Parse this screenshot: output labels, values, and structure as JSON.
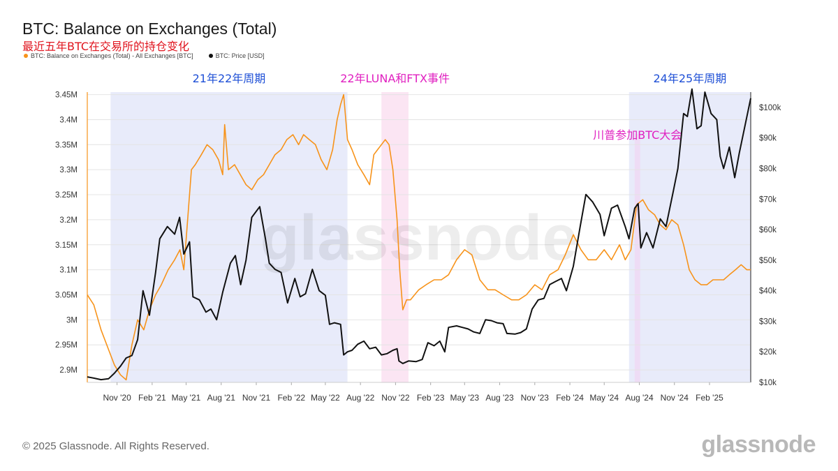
{
  "header": {
    "title": "BTC: Balance on Exchanges (Total)",
    "subtitle": "最近五年BTC在交易所的持仓变化",
    "legend": [
      {
        "label": "BTC: Balance on Exchanges (Total) - All Exchanges [BTC]",
        "color": "#f7931a"
      },
      {
        "label": "BTC: Price [USD]",
        "color": "#111111"
      }
    ]
  },
  "footer": {
    "copyright": "© 2025 Glassnode. All Rights Reserved.",
    "brand": "glassnode"
  },
  "watermark": "glassnode",
  "chart_data": {
    "type": "line",
    "x_ticks": [
      "Nov '20",
      "Feb '21",
      "May '21",
      "Aug '21",
      "Nov '21",
      "Feb '22",
      "May '22",
      "Aug '22",
      "Nov '22",
      "Feb '23",
      "May '23",
      "Aug '23",
      "Nov '23",
      "Feb '24",
      "May '24",
      "Aug '24",
      "Nov '24",
      "Feb '25"
    ],
    "x_range": [
      "2020-08-15",
      "2025-05-20"
    ],
    "y_left": {
      "ticks": [
        "2.9M",
        "2.95M",
        "3M",
        "3.05M",
        "3.1M",
        "3.15M",
        "3.2M",
        "3.25M",
        "3.3M",
        "3.35M",
        "3.4M",
        "3.45M"
      ],
      "ylim": [
        2.875,
        3.455
      ],
      "unit": "M BTC"
    },
    "y_right": {
      "ticks": [
        "$10k",
        "$20k",
        "$30k",
        "$40k",
        "$50k",
        "$60k",
        "$70k",
        "$80k",
        "$90k",
        "$100k"
      ],
      "ylim": [
        10,
        105
      ],
      "unit": "k USD"
    },
    "grid": true,
    "shaded_regions": [
      {
        "label": "21年22年周期",
        "start": "2020-10-15",
        "end": "2022-06-28",
        "color": "#e8ebfa",
        "label_color": "#1e4fd6"
      },
      {
        "label": "22年LUNA和FTX事件",
        "start": "2022-09-25",
        "end": "2022-12-05",
        "color": "#fbe5f3",
        "label_color": "#e020c0"
      },
      {
        "label": "24年25年周期",
        "start": "2024-07-05",
        "end": "2025-05-20",
        "color": "#e8ebfa",
        "label_color": "#1e4fd6"
      }
    ],
    "markers": [
      {
        "label": "川普参加BTC大会",
        "date": "2024-07-27",
        "color": "#e020c0"
      }
    ],
    "series": [
      {
        "name": "BTC: Balance on Exchanges (Total) - All Exchanges [BTC]",
        "axis": "left",
        "color": "#f7931a",
        "x": [
          "2020-08-15",
          "2020-09-01",
          "2020-09-20",
          "2020-10-10",
          "2020-10-25",
          "2020-11-10",
          "2020-11-25",
          "2020-12-10",
          "2020-12-25",
          "2021-01-10",
          "2021-01-25",
          "2021-02-10",
          "2021-02-25",
          "2021-03-15",
          "2021-04-01",
          "2021-04-15",
          "2021-04-25",
          "2021-05-05",
          "2021-05-15",
          "2021-05-25",
          "2021-06-10",
          "2021-06-25",
          "2021-07-10",
          "2021-07-25",
          "2021-08-05",
          "2021-08-10",
          "2021-08-20",
          "2021-09-05",
          "2021-09-20",
          "2021-10-05",
          "2021-10-20",
          "2021-11-05",
          "2021-11-20",
          "2021-12-05",
          "2021-12-20",
          "2022-01-05",
          "2022-01-20",
          "2022-02-05",
          "2022-02-20",
          "2022-03-05",
          "2022-03-20",
          "2022-04-05",
          "2022-04-20",
          "2022-05-05",
          "2022-05-20",
          "2022-06-01",
          "2022-06-10",
          "2022-06-18",
          "2022-06-28",
          "2022-07-10",
          "2022-07-25",
          "2022-08-10",
          "2022-08-25",
          "2022-09-05",
          "2022-09-15",
          "2022-09-25",
          "2022-10-05",
          "2022-10-15",
          "2022-10-25",
          "2022-11-05",
          "2022-11-12",
          "2022-11-20",
          "2022-11-30",
          "2022-12-10",
          "2023-01-01",
          "2023-01-20",
          "2023-02-10",
          "2023-03-01",
          "2023-03-20",
          "2023-04-10",
          "2023-05-01",
          "2023-05-20",
          "2023-06-10",
          "2023-07-01",
          "2023-07-20",
          "2023-08-10",
          "2023-09-01",
          "2023-09-20",
          "2023-10-10",
          "2023-11-01",
          "2023-11-20",
          "2023-12-10",
          "2024-01-01",
          "2024-01-20",
          "2024-02-10",
          "2024-03-01",
          "2024-03-20",
          "2024-04-10",
          "2024-05-01",
          "2024-05-20",
          "2024-06-10",
          "2024-06-25",
          "2024-07-10",
          "2024-07-25",
          "2024-08-10",
          "2024-08-25",
          "2024-09-10",
          "2024-09-25",
          "2024-10-10",
          "2024-10-25",
          "2024-11-10",
          "2024-11-25",
          "2024-12-10",
          "2024-12-25",
          "2025-01-10",
          "2025-01-25",
          "2025-02-10",
          "2025-02-25",
          "2025-03-10",
          "2025-03-25",
          "2025-04-10",
          "2025-04-25",
          "2025-05-10",
          "2025-05-20"
        ],
        "values": [
          3.05,
          3.03,
          2.98,
          2.94,
          2.91,
          2.89,
          2.88,
          2.95,
          3.0,
          2.98,
          3.02,
          3.05,
          3.07,
          3.1,
          3.12,
          3.14,
          3.1,
          3.2,
          3.3,
          3.31,
          3.33,
          3.35,
          3.34,
          3.32,
          3.29,
          3.39,
          3.3,
          3.31,
          3.29,
          3.27,
          3.26,
          3.28,
          3.29,
          3.31,
          3.33,
          3.34,
          3.36,
          3.37,
          3.35,
          3.37,
          3.36,
          3.35,
          3.32,
          3.3,
          3.34,
          3.4,
          3.43,
          3.45,
          3.36,
          3.34,
          3.31,
          3.29,
          3.27,
          3.33,
          3.34,
          3.35,
          3.36,
          3.35,
          3.3,
          3.2,
          3.1,
          3.02,
          3.04,
          3.04,
          3.06,
          3.07,
          3.08,
          3.08,
          3.09,
          3.12,
          3.14,
          3.13,
          3.08,
          3.06,
          3.06,
          3.05,
          3.04,
          3.04,
          3.05,
          3.07,
          3.06,
          3.09,
          3.1,
          3.13,
          3.17,
          3.14,
          3.12,
          3.12,
          3.14,
          3.12,
          3.15,
          3.12,
          3.14,
          3.23,
          3.24,
          3.22,
          3.21,
          3.19,
          3.18,
          3.2,
          3.19,
          3.15,
          3.1,
          3.08,
          3.07,
          3.07,
          3.08,
          3.08,
          3.08,
          3.09,
          3.1,
          3.11,
          3.1,
          3.1
        ]
      },
      {
        "name": "BTC: Price [USD]",
        "axis": "right",
        "color": "#111111",
        "x": [
          "2020-08-15",
          "2020-09-01",
          "2020-09-20",
          "2020-10-10",
          "2020-10-25",
          "2020-11-10",
          "2020-11-25",
          "2020-12-10",
          "2020-12-25",
          "2021-01-08",
          "2021-01-25",
          "2021-02-10",
          "2021-02-21",
          "2021-03-13",
          "2021-04-01",
          "2021-04-14",
          "2021-04-25",
          "2021-05-10",
          "2021-05-19",
          "2021-06-05",
          "2021-06-22",
          "2021-07-05",
          "2021-07-20",
          "2021-08-05",
          "2021-08-25",
          "2021-09-07",
          "2021-09-21",
          "2021-10-05",
          "2021-10-20",
          "2021-11-10",
          "2021-11-25",
          "2021-12-05",
          "2021-12-20",
          "2022-01-05",
          "2022-01-22",
          "2022-02-10",
          "2022-02-24",
          "2022-03-10",
          "2022-03-28",
          "2022-04-15",
          "2022-05-01",
          "2022-05-12",
          "2022-05-25",
          "2022-06-10",
          "2022-06-18",
          "2022-06-28",
          "2022-07-10",
          "2022-07-25",
          "2022-08-10",
          "2022-08-25",
          "2022-09-10",
          "2022-09-25",
          "2022-10-10",
          "2022-10-25",
          "2022-11-05",
          "2022-11-10",
          "2022-11-20",
          "2022-12-05",
          "2022-12-25",
          "2023-01-10",
          "2023-01-25",
          "2023-02-10",
          "2023-02-25",
          "2023-03-10",
          "2023-03-20",
          "2023-04-10",
          "2023-04-25",
          "2023-05-10",
          "2023-05-25",
          "2023-06-10",
          "2023-06-25",
          "2023-07-10",
          "2023-07-25",
          "2023-08-10",
          "2023-08-20",
          "2023-09-10",
          "2023-09-25",
          "2023-10-10",
          "2023-10-25",
          "2023-11-10",
          "2023-11-25",
          "2023-12-10",
          "2023-12-25",
          "2024-01-10",
          "2024-01-23",
          "2024-02-10",
          "2024-02-28",
          "2024-03-14",
          "2024-04-01",
          "2024-04-20",
          "2024-05-01",
          "2024-05-20",
          "2024-06-05",
          "2024-06-25",
          "2024-07-05",
          "2024-07-20",
          "2024-07-29",
          "2024-08-05",
          "2024-08-20",
          "2024-09-06",
          "2024-09-25",
          "2024-10-10",
          "2024-10-29",
          "2024-11-10",
          "2024-11-25",
          "2024-12-05",
          "2024-12-17",
          "2024-12-30",
          "2025-01-10",
          "2025-01-20",
          "2025-02-05",
          "2025-02-20",
          "2025-03-01",
          "2025-03-10",
          "2025-03-25",
          "2025-04-08",
          "2025-04-20",
          "2025-05-05",
          "2025-05-20"
        ],
        "values": [
          11.8,
          11.4,
          10.9,
          11.2,
          13.0,
          15.3,
          18.0,
          18.8,
          24.0,
          40.0,
          32.0,
          46.0,
          57.0,
          61.0,
          58.5,
          64.0,
          52.0,
          56.0,
          38.0,
          37.0,
          33.0,
          34.0,
          30.5,
          39.5,
          49.0,
          51.5,
          42.0,
          50.0,
          64.0,
          67.5,
          57.0,
          49.0,
          47.0,
          46.0,
          36.0,
          44.0,
          38.0,
          39.0,
          47.0,
          40.0,
          38.5,
          29.0,
          29.5,
          29.0,
          19.0,
          20.0,
          20.5,
          22.5,
          23.5,
          21.0,
          21.5,
          19.0,
          19.4,
          20.5,
          21.0,
          17.0,
          16.2,
          17.0,
          16.8,
          17.5,
          23.0,
          22.0,
          23.5,
          20.0,
          28.0,
          28.5,
          28.0,
          27.5,
          26.5,
          26.0,
          30.5,
          30.2,
          29.5,
          29.2,
          26.0,
          25.8,
          26.3,
          27.5,
          34.0,
          37.0,
          37.5,
          42.0,
          43.0,
          44.0,
          40.0,
          48.0,
          61.0,
          71.5,
          69.0,
          65.0,
          58.0,
          67.0,
          68.0,
          61.0,
          57.0,
          67.0,
          68.5,
          54.0,
          59.0,
          54.0,
          63.5,
          61.0,
          72.5,
          80.0,
          98.0,
          97.0,
          106.0,
          93.0,
          94.0,
          105.0,
          98.0,
          96.0,
          84.0,
          80.0,
          87.0,
          77.0,
          85.0,
          94.0,
          103.0
        ]
      }
    ]
  }
}
